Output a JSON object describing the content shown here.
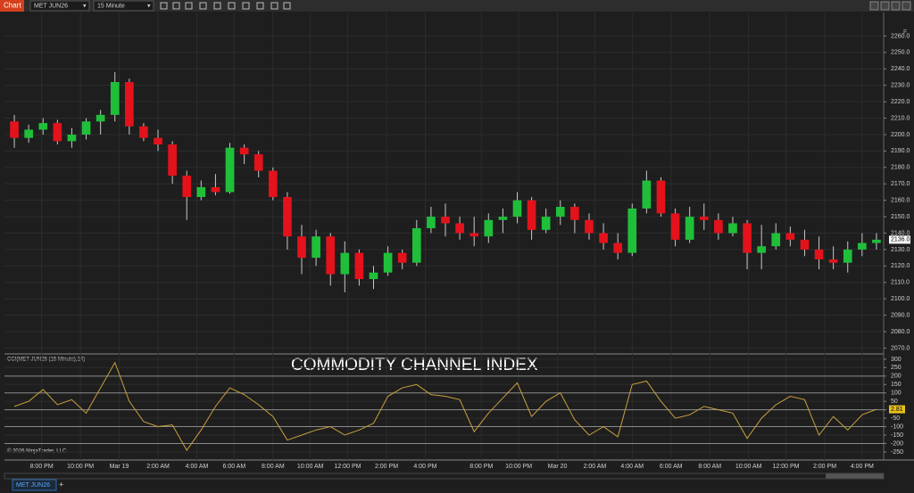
{
  "toolbar": {
    "tab": "Chart",
    "instrument": "MET JUN26",
    "interval": "15 Minute",
    "flag": "F"
  },
  "chart_data": [
    {
      "type": "candlestick",
      "up_color": "#1fbf3a",
      "down_color": "#e3121b",
      "xlim": [
        0,
        61
      ],
      "ohlc": [
        [
          2208,
          2212,
          2192,
          2198
        ],
        [
          2198,
          2206,
          2195,
          2203
        ],
        [
          2203,
          2210,
          2200,
          2207
        ],
        [
          2207,
          2209,
          2194,
          2196
        ],
        [
          2196,
          2204,
          2192,
          2200
        ],
        [
          2200,
          2210,
          2197,
          2208
        ],
        [
          2208,
          2215,
          2200,
          2212
        ],
        [
          2212,
          2238,
          2208,
          2232
        ],
        [
          2232,
          2234,
          2200,
          2205
        ],
        [
          2205,
          2207,
          2196,
          2198
        ],
        [
          2198,
          2203,
          2190,
          2194
        ],
        [
          2194,
          2196,
          2170,
          2175
        ],
        [
          2175,
          2178,
          2148,
          2162
        ],
        [
          2162,
          2172,
          2160,
          2168
        ],
        [
          2168,
          2176,
          2163,
          2165
        ],
        [
          2165,
          2195,
          2164,
          2192
        ],
        [
          2192,
          2194,
          2182,
          2188
        ],
        [
          2188,
          2190,
          2174,
          2178
        ],
        [
          2178,
          2180,
          2160,
          2162
        ],
        [
          2162,
          2165,
          2130,
          2138
        ],
        [
          2138,
          2145,
          2115,
          2125
        ],
        [
          2125,
          2142,
          2120,
          2138
        ],
        [
          2138,
          2140,
          2108,
          2115
        ],
        [
          2115,
          2135,
          2104,
          2128
        ],
        [
          2128,
          2130,
          2108,
          2112
        ],
        [
          2112,
          2120,
          2106,
          2116
        ],
        [
          2116,
          2132,
          2114,
          2128
        ],
        [
          2128,
          2130,
          2118,
          2122
        ],
        [
          2122,
          2148,
          2120,
          2143
        ],
        [
          2143,
          2156,
          2140,
          2150
        ],
        [
          2150,
          2158,
          2138,
          2146
        ],
        [
          2146,
          2150,
          2136,
          2140
        ],
        [
          2140,
          2150,
          2132,
          2138
        ],
        [
          2138,
          2152,
          2134,
          2148
        ],
        [
          2148,
          2155,
          2140,
          2150
        ],
        [
          2150,
          2165,
          2146,
          2160
        ],
        [
          2160,
          2162,
          2136,
          2142
        ],
        [
          2142,
          2155,
          2140,
          2150
        ],
        [
          2150,
          2160,
          2145,
          2156
        ],
        [
          2156,
          2158,
          2140,
          2148
        ],
        [
          2148,
          2152,
          2136,
          2140
        ],
        [
          2140,
          2146,
          2130,
          2134
        ],
        [
          2134,
          2140,
          2124,
          2128
        ],
        [
          2128,
          2158,
          2126,
          2155
        ],
        [
          2155,
          2178,
          2152,
          2172
        ],
        [
          2172,
          2174,
          2150,
          2152
        ],
        [
          2152,
          2155,
          2132,
          2136
        ],
        [
          2136,
          2156,
          2134,
          2150
        ],
        [
          2150,
          2158,
          2142,
          2148
        ],
        [
          2148,
          2152,
          2136,
          2140
        ],
        [
          2140,
          2150,
          2138,
          2146
        ],
        [
          2146,
          2148,
          2118,
          2128
        ],
        [
          2128,
          2145,
          2118,
          2132
        ],
        [
          2132,
          2146,
          2130,
          2140
        ],
        [
          2140,
          2144,
          2132,
          2136
        ],
        [
          2136,
          2142,
          2126,
          2130
        ],
        [
          2130,
          2138,
          2118,
          2124
        ],
        [
          2124,
          2132,
          2118,
          2122
        ],
        [
          2122,
          2135,
          2116,
          2130
        ],
        [
          2130,
          2140,
          2126,
          2134
        ],
        [
          2134,
          2140,
          2130,
          2136
        ]
      ],
      "ylim": [
        2067,
        2270
      ],
      "yticks": [
        {
          "value": 2070,
          "label": "2070.0"
        },
        {
          "value": 2080,
          "label": "2080.0"
        },
        {
          "value": 2090,
          "label": "2090.0"
        },
        {
          "value": 2100,
          "label": "2100.0"
        },
        {
          "value": 2110,
          "label": "2110.0"
        },
        {
          "value": 2120,
          "label": "2120.0"
        },
        {
          "value": 2130,
          "label": "2130.0"
        },
        {
          "value": 2140,
          "label": "2140.0"
        },
        {
          "value": 2150,
          "label": "2150.0"
        },
        {
          "value": 2160,
          "label": "2160.0"
        },
        {
          "value": 2170,
          "label": "2170.0"
        },
        {
          "value": 2180,
          "label": "2180.0"
        },
        {
          "value": 2190,
          "label": "2190.0"
        },
        {
          "value": 2200,
          "label": "2200.0"
        },
        {
          "value": 2210,
          "label": "2210.0"
        },
        {
          "value": 2220,
          "label": "2220.0"
        },
        {
          "value": 2230,
          "label": "2230.0"
        },
        {
          "value": 2240,
          "label": "2240.0"
        },
        {
          "value": 2250,
          "label": "2250.0"
        },
        {
          "value": 2260,
          "label": "2260.0"
        }
      ],
      "current_price": {
        "value": 2136,
        "label": "2136.0"
      }
    },
    {
      "type": "line",
      "title": "CCI(MET JUN26 (15 Minute),14)",
      "annotation": "COMMODITY CHANNEL INDEX",
      "copyright": "© 2026 NinjaTrader, LLC",
      "color": "#c9a03e",
      "xlim": [
        0,
        61
      ],
      "values": [
        20,
        50,
        120,
        30,
        60,
        -20,
        130,
        280,
        50,
        -70,
        -100,
        -90,
        -240,
        -120,
        20,
        130,
        90,
        30,
        -40,
        -180,
        -150,
        -120,
        -100,
        -150,
        -120,
        -80,
        80,
        130,
        150,
        90,
        80,
        60,
        -130,
        -20,
        70,
        160,
        -40,
        50,
        100,
        -60,
        -150,
        -100,
        -160,
        150,
        170,
        50,
        -50,
        -30,
        20,
        0,
        -20,
        -170,
        -50,
        30,
        80,
        60,
        -150,
        -40,
        -120,
        -30,
        2.81
      ],
      "ylim": [
        -298,
        326
      ],
      "yticks": [
        300,
        250,
        200,
        150,
        100,
        50,
        0,
        -50,
        -100,
        -150,
        -200,
        -250
      ],
      "levels": [
        200,
        100,
        0,
        -100,
        -200
      ],
      "xticks": [
        {
          "value": 2.4,
          "label": "8:00 PM"
        },
        {
          "value": 5.1,
          "label": "10:00 PM"
        },
        {
          "value": 7.8,
          "label": "Mar 19"
        },
        {
          "value": 10.5,
          "label": "2:00 AM"
        },
        {
          "value": 13.2,
          "label": "4:00 AM"
        },
        {
          "value": 15.8,
          "label": "6:00 AM"
        },
        {
          "value": 18.5,
          "label": "8:00 AM"
        },
        {
          "value": 21.1,
          "label": "10:00 AM"
        },
        {
          "value": 23.7,
          "label": "12:00 PM"
        },
        {
          "value": 26.4,
          "label": "2:00 PM"
        },
        {
          "value": 29.1,
          "label": "4:00 PM"
        },
        {
          "value": 33.0,
          "label": "8:00 PM"
        },
        {
          "value": 35.6,
          "label": "10:00 PM"
        },
        {
          "value": 38.3,
          "label": "Mar 20"
        },
        {
          "value": 40.9,
          "label": "2:00 AM"
        },
        {
          "value": 43.5,
          "label": "4:00 AM"
        },
        {
          "value": 46.2,
          "label": "6:00 AM"
        },
        {
          "value": 48.9,
          "label": "8:00 AM"
        },
        {
          "value": 51.6,
          "label": "10:00 AM"
        },
        {
          "value": 54.2,
          "label": "12:00 PM"
        },
        {
          "value": 56.9,
          "label": "2:00 PM"
        },
        {
          "value": 59.5,
          "label": "4:00 PM"
        }
      ]
    }
  ],
  "footer": {
    "tab": "MET JUN26",
    "add": "+"
  }
}
